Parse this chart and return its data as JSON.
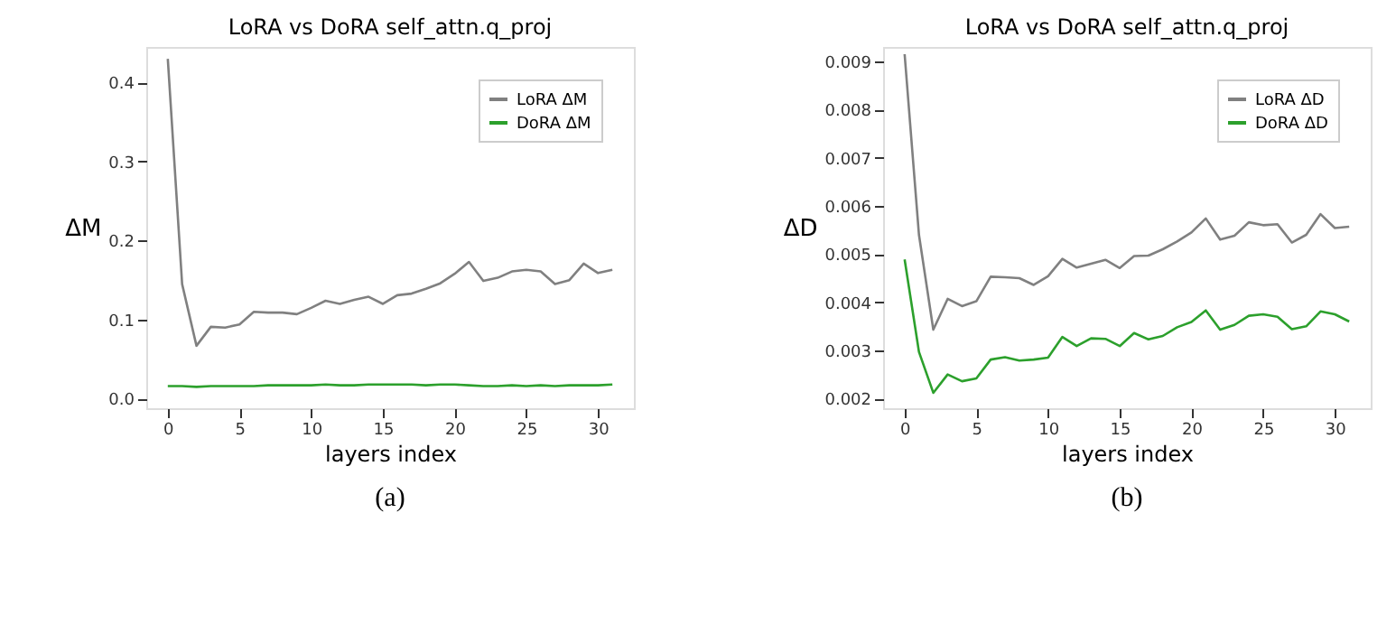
{
  "chart_data": [
    {
      "type": "line",
      "title": "LoRA vs DoRA self_attn.q_proj",
      "xlabel": "layers index",
      "ylabel": "ΔM",
      "x": [
        0,
        1,
        2,
        3,
        4,
        5,
        6,
        7,
        8,
        9,
        10,
        11,
        12,
        13,
        14,
        15,
        16,
        17,
        18,
        19,
        20,
        21,
        22,
        23,
        24,
        25,
        26,
        27,
        28,
        29,
        30,
        31
      ],
      "series": [
        {
          "name": "LoRA ΔM",
          "color": "#808080",
          "values": [
            0.43,
            0.145,
            0.067,
            0.091,
            0.09,
            0.094,
            0.11,
            0.109,
            0.109,
            0.107,
            0.115,
            0.124,
            0.12,
            0.125,
            0.129,
            0.12,
            0.131,
            0.133,
            0.139,
            0.146,
            0.158,
            0.173,
            0.149,
            0.153,
            0.161,
            0.163,
            0.161,
            0.145,
            0.15,
            0.171,
            0.159,
            0.163
          ]
        },
        {
          "name": "DoRA ΔM",
          "color": "#2ca02c",
          "values": [
            0.016,
            0.016,
            0.015,
            0.016,
            0.016,
            0.016,
            0.016,
            0.017,
            0.017,
            0.017,
            0.017,
            0.018,
            0.017,
            0.017,
            0.018,
            0.018,
            0.018,
            0.018,
            0.017,
            0.018,
            0.018,
            0.017,
            0.016,
            0.016,
            0.017,
            0.016,
            0.017,
            0.016,
            0.017,
            0.017,
            0.017,
            0.018
          ]
        }
      ],
      "xlim": [
        -1.5,
        32.5
      ],
      "xticks": [
        0,
        5,
        10,
        15,
        20,
        25,
        30
      ],
      "ylim": [
        -0.012,
        0.445
      ],
      "yticks": [
        {
          "value": 0,
          "label": "0.0"
        },
        0.1,
        0.2,
        0.3,
        0.4
      ],
      "grid": false,
      "legend": "top right",
      "annotations": [
        "(a)"
      ]
    },
    {
      "type": "line",
      "title": "LoRA vs DoRA self_attn.q_proj",
      "xlabel": "layers index",
      "ylabel": "ΔD",
      "x": [
        0,
        1,
        2,
        3,
        4,
        5,
        6,
        7,
        8,
        9,
        10,
        11,
        12,
        13,
        14,
        15,
        16,
        17,
        18,
        19,
        20,
        21,
        22,
        23,
        24,
        25,
        26,
        27,
        28,
        29,
        30,
        31
      ],
      "series": [
        {
          "name": "LoRA ΔD",
          "color": "#808080",
          "values": [
            0.00915,
            0.0054,
            0.00343,
            0.00407,
            0.00392,
            0.00402,
            0.00453,
            0.00452,
            0.0045,
            0.00436,
            0.00454,
            0.0049,
            0.00472,
            0.0048,
            0.00488,
            0.00471,
            0.00496,
            0.00497,
            0.0051,
            0.00526,
            0.00545,
            0.00574,
            0.0053,
            0.00538,
            0.00566,
            0.0056,
            0.00562,
            0.00524,
            0.0054,
            0.00583,
            0.00554,
            0.00557
          ]
        },
        {
          "name": "DoRA ΔD",
          "color": "#2ca02c",
          "values": [
            0.00489,
            0.00297,
            0.00212,
            0.0025,
            0.00236,
            0.00242,
            0.00281,
            0.00286,
            0.00279,
            0.00281,
            0.00285,
            0.00328,
            0.00309,
            0.00325,
            0.00324,
            0.00309,
            0.00336,
            0.00323,
            0.0033,
            0.00348,
            0.00359,
            0.00383,
            0.00343,
            0.00353,
            0.00372,
            0.00375,
            0.0037,
            0.00344,
            0.0035,
            0.00381,
            0.00375,
            0.0036
          ]
        }
      ],
      "xlim": [
        -1.5,
        32.5
      ],
      "xticks": [
        0,
        5,
        10,
        15,
        20,
        25,
        30
      ],
      "ylim": [
        0.0018,
        0.0093
      ],
      "yticks": [
        0.002,
        0.003,
        0.004,
        0.005,
        0.006,
        0.007,
        0.008,
        0.009
      ],
      "grid": false,
      "legend": "top right",
      "annotations": [
        "(b)"
      ]
    }
  ]
}
